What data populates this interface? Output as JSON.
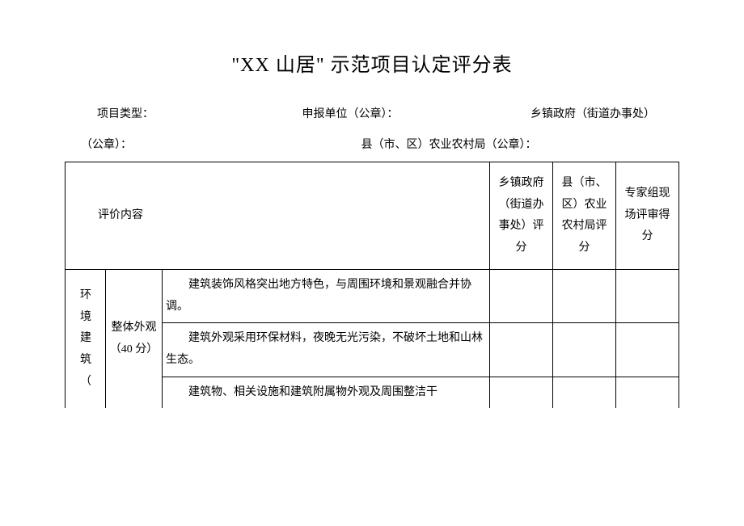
{
  "title": "\"XX 山居\" 示范项目认定评分表",
  "meta": {
    "project_type_label": "项目类型：",
    "applicant_label": "申报单位（公章）：",
    "township_label": "乡镇政府（街道办事处）",
    "seal1": "（公章）：",
    "county_bureau_label": "县（市、区）农业农村局（公章）："
  },
  "headers": {
    "eval_content": "评价内容",
    "score_township": "乡镇政府（街道办事处）评分",
    "score_county": "县（市、区）农业农村局评分",
    "score_expert": "专家组现场评审得分"
  },
  "rows": {
    "category": "环境建筑（",
    "subcategory": "整体外观（40 分）",
    "item1": "建筑装饰风格突出地方特色，与周围环境和景观融合并协调。",
    "item2": "建筑外观采用环保材料，夜晚无光污染，不破坏土地和山林生态。",
    "item3": "建筑物、相关设施和建筑附属物外观及周围整洁干"
  }
}
